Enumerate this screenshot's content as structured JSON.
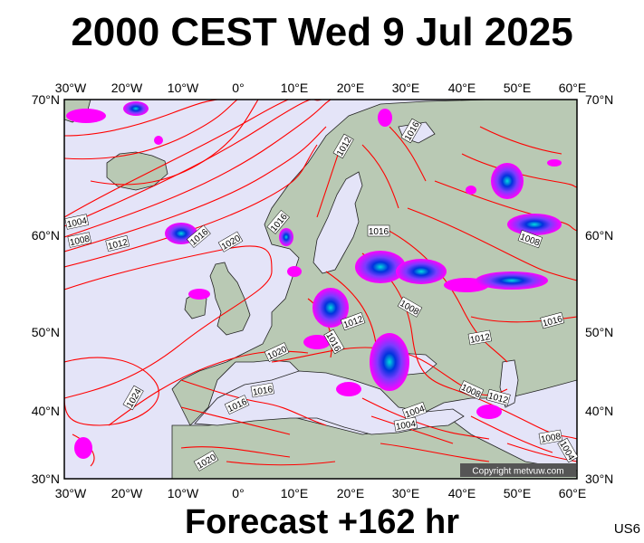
{
  "title": "2000 CEST Wed 9 Jul 2025",
  "footer": "Forecast +162 hr",
  "code": "US6",
  "copyright": "Copyright metvuw.com",
  "map": {
    "lon_labels": [
      "30°W",
      "20°W",
      "10°W",
      "0°",
      "10°E",
      "20°E",
      "30°E",
      "40°E",
      "50°E",
      "60°E"
    ],
    "lat_labels": [
      "70°N",
      "60°N",
      "50°N",
      "40°N",
      "30°N"
    ],
    "isobar_labels": [
      "1004",
      "1008",
      "1012",
      "1016",
      "1020",
      "1024"
    ],
    "colors": {
      "sea": "#e4e4f8",
      "land": "#b9c9b4",
      "isobar": "#ff0000",
      "rain_light": "#ff00ff",
      "rain_moderate": "#7a3cff",
      "rain_heavy": "#0033dd",
      "rain_extreme": "#00dddd"
    }
  }
}
